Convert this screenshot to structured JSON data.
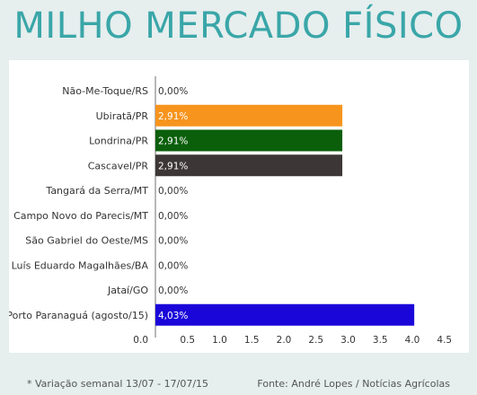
{
  "title": "MILHO MERCADO FÍSICO",
  "footnote_left": "* Variação semanal 13/07 - 17/07/15",
  "footnote_right": "Fonte: André Lopes / Notícias Agrícolas",
  "chart_data": {
    "type": "bar",
    "orientation": "horizontal",
    "categories": [
      "Não-Me-Toque/RS",
      "Ubiratã/PR",
      "Londrina/PR",
      "Cascavel/PR",
      "Tangará da Serra/MT",
      "Campo Novo do Parecis/MT",
      "São Gabriel do Oeste/MS",
      "Luís Eduardo Magalhães/BA",
      "Jataí/GO",
      "Porto Paranaguá (agosto/15)"
    ],
    "values": [
      0.0,
      2.91,
      2.91,
      2.91,
      0.0,
      0.0,
      0.0,
      0.0,
      0.0,
      4.03
    ],
    "data_labels": [
      "0,00%",
      "2,91%",
      "2,91%",
      "2,91%",
      "0,00%",
      "0,00%",
      "0,00%",
      "0,00%",
      "0,00%",
      "4,03%"
    ],
    "colors": [
      "#ffffff",
      "#f7941d",
      "#0b5f0b",
      "#3d3637",
      "#ffffff",
      "#ffffff",
      "#ffffff",
      "#ffffff",
      "#ffffff",
      "#1a06d9"
    ],
    "label_colors": [
      "#333333",
      "#ffffff",
      "#ffffff",
      "#ffffff",
      "#333333",
      "#333333",
      "#333333",
      "#333333",
      "#333333",
      "#ffffff"
    ],
    "xticks": [
      0.0,
      0.5,
      1.0,
      1.5,
      2.0,
      2.5,
      3.0,
      3.5,
      4.0,
      4.5
    ],
    "xtick_labels": [
      "0.0",
      "0.5",
      "1.0",
      "1.5",
      "2.0",
      "2.5",
      "3.0",
      "3.5",
      "4.0",
      "4.5"
    ],
    "xlim": [
      0.0,
      4.5
    ],
    "grid": false,
    "legend": "none"
  }
}
